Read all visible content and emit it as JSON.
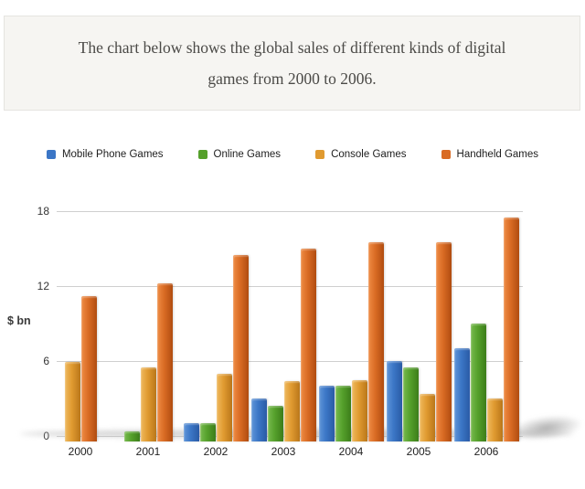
{
  "header": {
    "title_line1": "The chart below shows the global sales of different kinds of digital",
    "title_line2": "games from 2000 to 2006."
  },
  "chart_data": {
    "type": "bar",
    "title": "Global sales of different kinds of digital games, 2000-2006",
    "categories": [
      "2000",
      "2001",
      "2002",
      "2003",
      "2004",
      "2005",
      "2006"
    ],
    "series": [
      {
        "name": "Mobile Phone Games",
        "color": "#3b76c6",
        "color_light": "#6095d8",
        "color_dark": "#2a5ba5",
        "values": [
          0,
          0,
          1,
          3,
          4,
          6,
          7
        ]
      },
      {
        "name": "Online Games",
        "color": "#55a02b",
        "color_light": "#77ba4e",
        "color_dark": "#3c7d1a",
        "values": [
          0,
          0.4,
          1,
          2.4,
          4,
          5.5,
          9
        ]
      },
      {
        "name": "Console Games",
        "color": "#e09a30",
        "color_light": "#efb95e",
        "color_dark": "#b9761a",
        "values": [
          5.9,
          5.5,
          5,
          4.4,
          4.5,
          3.4,
          3
        ]
      },
      {
        "name": "Handheld Games",
        "color": "#d96b24",
        "color_light": "#ef8c44",
        "color_dark": "#b04c10",
        "values": [
          11.2,
          12.2,
          14.5,
          15,
          15.5,
          15.5,
          17.5
        ]
      }
    ],
    "xlabel": "",
    "ylabel": "$ bn",
    "y_ticks": [
      0,
      6,
      12,
      18
    ],
    "ylim": [
      0,
      18
    ],
    "grid": true,
    "legend_position": "top",
    "gridline_color": "#cfcfcf"
  }
}
